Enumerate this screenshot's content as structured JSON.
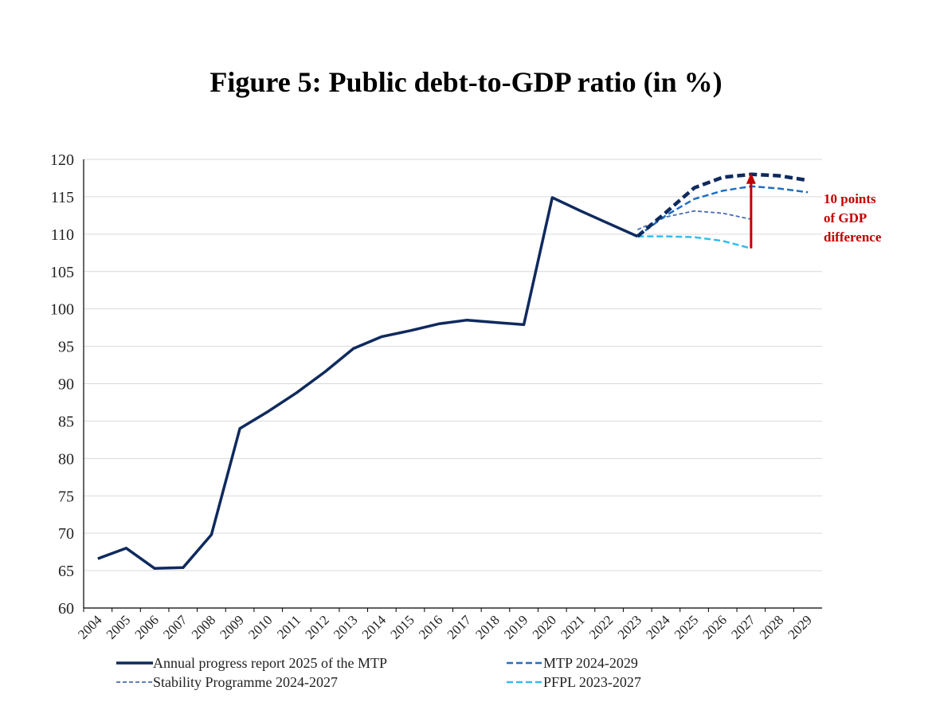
{
  "chart_data": {
    "type": "line",
    "title": "Figure 5: Public debt-to-GDP ratio (in %)",
    "xlabel": "",
    "ylabel": "",
    "ylim": [
      60,
      120
    ],
    "y_ticks": [
      60,
      65,
      70,
      75,
      80,
      85,
      90,
      95,
      100,
      105,
      110,
      115,
      120
    ],
    "categories": [
      "2004",
      "2005",
      "2006",
      "2007",
      "2008",
      "2009",
      "2010",
      "2011",
      "2012",
      "2013",
      "2014",
      "2015",
      "2016",
      "2017",
      "2018",
      "2019",
      "2020",
      "2021",
      "2022",
      "2023",
      "2024",
      "2025",
      "2026",
      "2027",
      "2028",
      "2029"
    ],
    "series": [
      {
        "name": "Annual progress report 2025 of the MTP",
        "color": "#0f2a5e",
        "style": "solid",
        "x": [
          "2004",
          "2005",
          "2006",
          "2007",
          "2008",
          "2009",
          "2010",
          "2011",
          "2012",
          "2013",
          "2014",
          "2015",
          "2016",
          "2017",
          "2018",
          "2019",
          "2020",
          "2021",
          "2022",
          "2023"
        ],
        "values": [
          66.6,
          68.0,
          65.3,
          65.4,
          69.8,
          84.0,
          86.3,
          88.8,
          91.6,
          94.7,
          96.3,
          97.1,
          98.0,
          98.5,
          98.2,
          97.9,
          114.9,
          113.1,
          111.4,
          109.7
        ]
      },
      {
        "name": "Annual progress report 2025 of the MTP (projection)",
        "color": "#0f2a5e",
        "style": "dashed-bold",
        "x": [
          "2023",
          "2024",
          "2025",
          "2026",
          "2027",
          "2028",
          "2029"
        ],
        "values": [
          109.7,
          112.9,
          116.2,
          117.6,
          118.0,
          117.8,
          117.2
        ]
      },
      {
        "name": "MTP 2024-2029",
        "color": "#1f6fc2",
        "style": "dashed",
        "x": [
          "2023",
          "2024",
          "2025",
          "2026",
          "2027",
          "2028",
          "2029"
        ],
        "values": [
          109.7,
          112.5,
          114.7,
          115.8,
          116.4,
          116.1,
          115.6
        ]
      },
      {
        "name": "Stability Programme 2024-2027",
        "color": "#4a6db0",
        "style": "dashed-thin",
        "x": [
          "2023",
          "2024",
          "2025",
          "2026",
          "2027"
        ],
        "values": [
          110.6,
          112.3,
          113.1,
          112.8,
          112.0
        ]
      },
      {
        "name": "PFPL 2023-2027",
        "color": "#33bdf0",
        "style": "dashed",
        "x": [
          "2023",
          "2024",
          "2025",
          "2026",
          "2027"
        ],
        "values": [
          109.7,
          109.7,
          109.6,
          109.1,
          108.1
        ]
      }
    ],
    "annotation": {
      "lines": [
        "10 points",
        "of GDP",
        "difference"
      ],
      "color": "#c00000",
      "arrow_x": "2027",
      "arrow_from": 108.1,
      "arrow_to": 118.0
    },
    "legend": [
      {
        "label": "Annual progress report 2025 of the MTP",
        "color": "#0f2a5e",
        "style": "solid"
      },
      {
        "label": "MTP 2024-2029",
        "color": "#1f6fc2",
        "style": "dashed"
      },
      {
        "label": "Stability Programme 2024-2027",
        "color": "#4a6db0",
        "style": "dashed-thin"
      },
      {
        "label": "PFPL 2023-2027",
        "color": "#33bdf0",
        "style": "dashed"
      }
    ],
    "legend_position": "bottom",
    "grid": true
  }
}
